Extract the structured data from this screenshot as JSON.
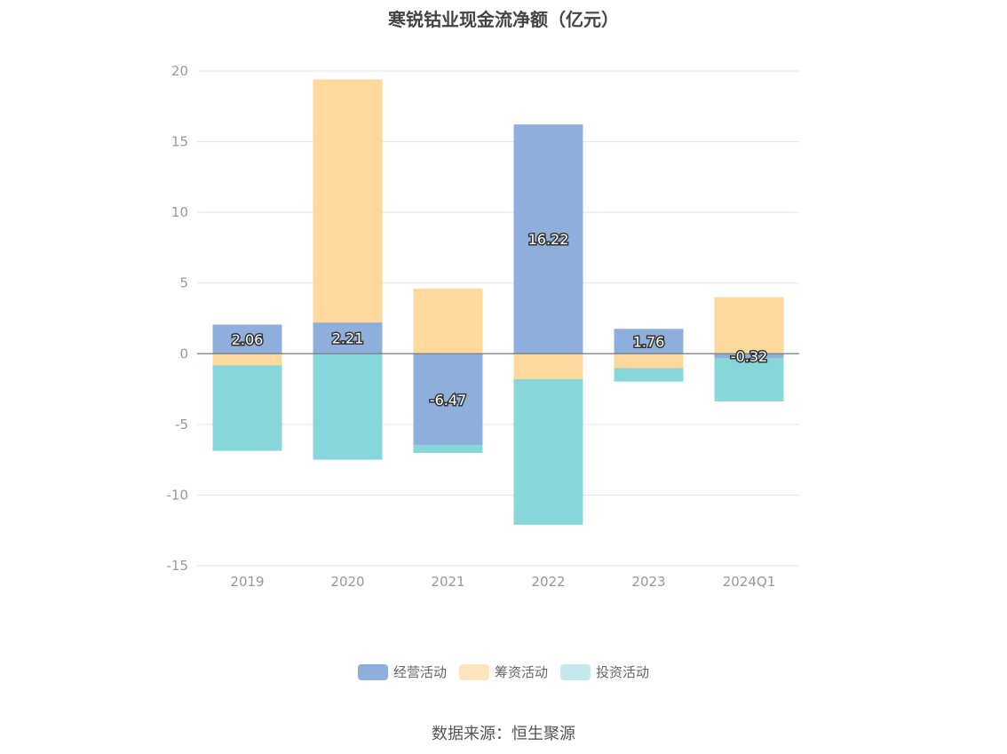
{
  "chart_data": {
    "type": "bar",
    "stacked": true,
    "title": "寒锐钴业现金流净额（亿元）",
    "categories": [
      "2019",
      "2020",
      "2021",
      "2022",
      "2023",
      "2024Q1"
    ],
    "series": [
      {
        "name": "经营活动",
        "color": "#8eaedb",
        "values": [
          2.06,
          2.21,
          -6.47,
          16.22,
          1.76,
          -0.32
        ],
        "data_labels": true
      },
      {
        "name": "筹资活动",
        "color": "#ffd99b",
        "values": [
          -0.82,
          17.2,
          4.6,
          -1.8,
          -1.02,
          4.0
        ],
        "data_labels": false
      },
      {
        "name": "投资活动",
        "color": "#87d6d9",
        "values": [
          -6.05,
          -7.5,
          -0.55,
          -10.3,
          -0.95,
          -3.05
        ],
        "data_labels": false
      }
    ],
    "legend_colors": [
      "#8eaedb",
      "#ffe4bd",
      "#c4e9ec"
    ],
    "ylim": [
      -15,
      20
    ],
    "yticks": [
      -15,
      -10,
      -5,
      0,
      5,
      10,
      15,
      20
    ],
    "grid": true,
    "legend_position": "bottom"
  },
  "source_note": "数据来源：恒生聚源"
}
